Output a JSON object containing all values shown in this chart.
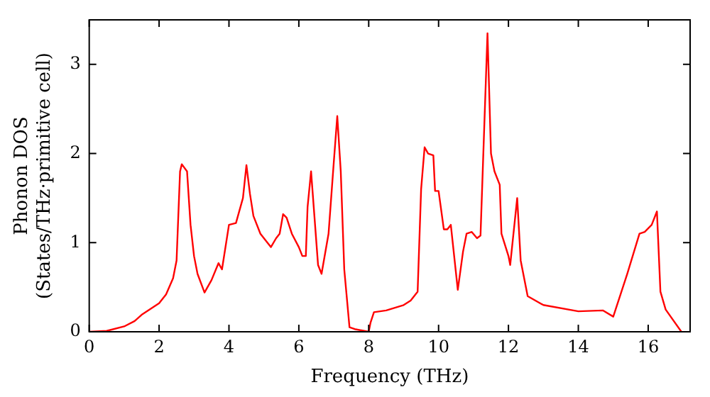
{
  "chart_data": {
    "type": "line",
    "xlabel": "Frequency (THz)",
    "ylabel": "Phonon DOS\n(States/THz·primitive cell)",
    "xlim": [
      0,
      17.2
    ],
    "ylim": [
      0,
      3.5
    ],
    "xticks": [
      0,
      2,
      4,
      6,
      8,
      10,
      12,
      14,
      16
    ],
    "yticks": [
      0,
      1,
      2,
      3
    ],
    "grid": false,
    "legend": false,
    "marker": "none",
    "line_style": "solid",
    "series": [
      {
        "color": "#ff0000",
        "x": [
          0,
          0.5,
          1,
          1.3,
          1.5,
          2,
          2.2,
          2.4,
          2.5,
          2.6,
          2.65,
          2.8,
          2.9,
          3.0,
          3.1,
          3.3,
          3.5,
          3.7,
          3.8,
          4.0,
          4.2,
          4.4,
          4.5,
          4.6,
          4.7,
          4.9,
          5.2,
          5.35,
          5.45,
          5.55,
          5.65,
          5.8,
          6.0,
          6.1,
          6.2,
          6.25,
          6.35,
          6.55,
          6.65,
          6.85,
          7.0,
          7.1,
          7.2,
          7.3,
          7.45,
          7.6,
          8.0,
          8.05,
          8.15,
          8.5,
          9.0,
          9.2,
          9.4,
          9.5,
          9.6,
          9.7,
          9.85,
          9.9,
          10.0,
          10.15,
          10.25,
          10.35,
          10.55,
          10.7,
          10.8,
          10.95,
          11.1,
          11.2,
          11.4,
          11.5,
          11.6,
          11.75,
          11.8,
          12.0,
          12.05,
          12.25,
          12.35,
          12.55,
          13,
          14,
          14.7,
          15.0,
          15.4,
          15.75,
          15.9,
          16.1,
          16.25,
          16.35,
          16.5,
          16.95
        ],
        "values": [
          0,
          0.01,
          0.06,
          0.12,
          0.19,
          0.32,
          0.42,
          0.6,
          0.8,
          1.8,
          1.88,
          1.8,
          1.2,
          0.85,
          0.65,
          0.44,
          0.58,
          0.77,
          0.7,
          1.2,
          1.22,
          1.5,
          1.87,
          1.55,
          1.3,
          1.1,
          0.95,
          1.05,
          1.1,
          1.32,
          1.28,
          1.1,
          0.95,
          0.85,
          0.85,
          1.4,
          1.8,
          0.75,
          0.65,
          1.1,
          1.9,
          2.42,
          1.8,
          0.7,
          0.05,
          0.03,
          0.0,
          0.1,
          0.22,
          0.24,
          0.3,
          0.35,
          0.45,
          1.6,
          2.07,
          2.0,
          1.98,
          1.58,
          1.58,
          1.15,
          1.15,
          1.2,
          0.47,
          0.9,
          1.1,
          1.12,
          1.05,
          1.08,
          3.35,
          2.0,
          1.8,
          1.65,
          1.1,
          0.85,
          0.75,
          1.5,
          0.8,
          0.4,
          0.3,
          0.23,
          0.24,
          0.17,
          0.65,
          1.1,
          1.12,
          1.2,
          1.35,
          0.45,
          0.25,
          0.0
        ]
      }
    ]
  }
}
